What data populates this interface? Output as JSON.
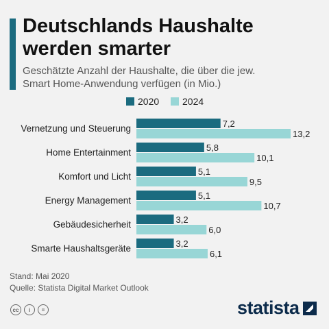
{
  "header": {
    "title_line1": "Deutschlands Haushalte",
    "title_line2": "werden smarter",
    "subtitle_line1": "Geschätzte Anzahl der Haushalte, die über die jew.",
    "subtitle_line2": "Smart Home-Anwendung verfügen (in Mio.)"
  },
  "colors": {
    "accent": "#1b6b7f",
    "series_2020": "#1b6b7f",
    "series_2024": "#98d6d6",
    "brand": "#0c2b4b"
  },
  "chart_data": {
    "type": "bar",
    "orientation": "horizontal",
    "categories": [
      "Vernetzung und Steuerung",
      "Home Entertainment",
      "Komfort und Licht",
      "Energy Management",
      "Gebäudesicherheit",
      "Smarte Haushaltsgeräte"
    ],
    "series": [
      {
        "name": "2020",
        "values": [
          7.2,
          5.8,
          5.1,
          5.1,
          3.2,
          3.2
        ],
        "labels": [
          "7,2",
          "5,8",
          "5,1",
          "5,1",
          "3,2",
          "3,2"
        ]
      },
      {
        "name": "2024",
        "values": [
          13.2,
          10.1,
          9.5,
          10.7,
          6.0,
          6.1
        ],
        "labels": [
          "13,2",
          "10,1",
          "9,5",
          "10,7",
          "6,0",
          "6,1"
        ]
      }
    ],
    "xlim": [
      0,
      13.2
    ],
    "legend_position": "top",
    "grid": false
  },
  "footer": {
    "stand": "Stand: Mai 2020",
    "source": "Quelle: Statista Digital Market Outlook",
    "brand": "statista",
    "license_icons": [
      "cc-icon",
      "person-icon",
      "equals-icon"
    ],
    "license_glyphs": [
      "cc",
      "i",
      "="
    ]
  }
}
